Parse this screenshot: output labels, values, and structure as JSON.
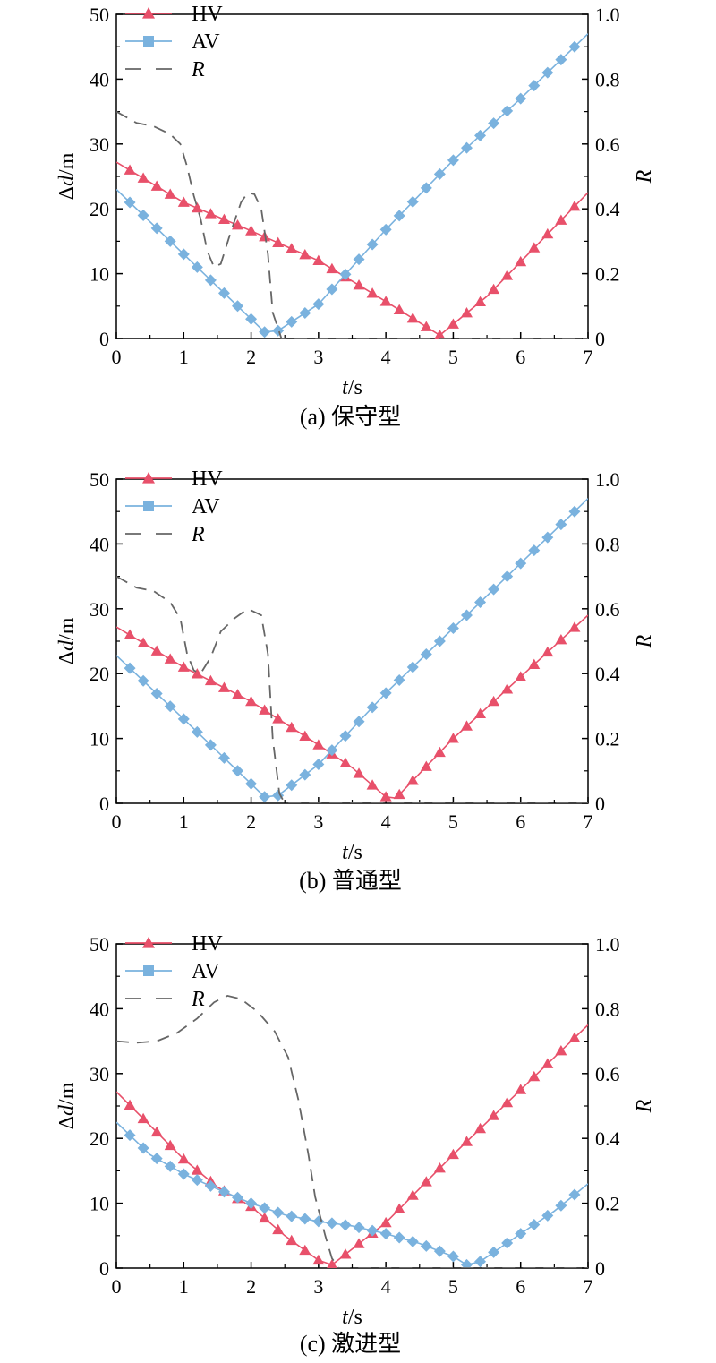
{
  "colors": {
    "hv": "#e8506a",
    "av": "#7ab2de",
    "r": "#666666",
    "axis": "#000000"
  },
  "chart_data": [
    {
      "type": "line",
      "caption": "(a) 保守型",
      "xlabel": {
        "italic": "t",
        "suffix": "/s"
      },
      "ylabel": {
        "prefix": "Δ",
        "italic": "d",
        "suffix": "/m"
      },
      "y2label": "R",
      "xlim": [
        0,
        7
      ],
      "ylim": [
        0,
        50
      ],
      "y2lim": [
        0,
        1.0
      ],
      "xticks": [
        "0",
        "1",
        "2",
        "3",
        "4",
        "5",
        "6",
        "7"
      ],
      "yticks": [
        "0",
        "10",
        "20",
        "30",
        "40",
        "50"
      ],
      "y2ticks": [
        "0",
        "0.2",
        "0.4",
        "0.6",
        "0.8",
        "1.0"
      ],
      "legend": {
        "placement": "top-left",
        "entries": [
          "HV",
          "AV",
          "R"
        ]
      },
      "series": [
        {
          "name": "HV",
          "axis": "left",
          "marker": "triangle",
          "points": [
            [
              0,
              27.2
            ],
            [
              1,
              21
            ],
            [
              2,
              16.6
            ],
            [
              3,
              12
            ],
            [
              4,
              5.7
            ],
            [
              4.8,
              0.5
            ],
            [
              5.5,
              6.5
            ],
            [
              7,
              22.5
            ]
          ]
        },
        {
          "name": "AV",
          "axis": "left",
          "marker": "diamond",
          "points": [
            [
              0,
              23
            ],
            [
              1,
              13
            ],
            [
              2,
              3
            ],
            [
              2.2,
              1
            ],
            [
              2.4,
              1.2
            ],
            [
              3,
              5.3
            ],
            [
              4,
              16.8
            ],
            [
              5,
              27.5
            ],
            [
              6,
              37
            ],
            [
              7,
              47
            ]
          ]
        },
        {
          "name": "R",
          "axis": "right",
          "marker": "none",
          "points": [
            [
              0,
              0.7
            ],
            [
              0.3,
              0.665
            ],
            [
              0.55,
              0.655
            ],
            [
              0.8,
              0.63
            ],
            [
              0.95,
              0.6
            ],
            [
              1.05,
              0.53
            ],
            [
              1.15,
              0.44
            ],
            [
              1.25,
              0.37
            ],
            [
              1.35,
              0.27
            ],
            [
              1.45,
              0.22
            ],
            [
              1.55,
              0.23
            ],
            [
              1.7,
              0.33
            ],
            [
              1.85,
              0.42
            ],
            [
              1.95,
              0.45
            ],
            [
              2.05,
              0.445
            ],
            [
              2.15,
              0.4
            ],
            [
              2.25,
              0.26
            ],
            [
              2.32,
              0.08
            ],
            [
              2.45,
              0.0
            ],
            [
              7,
              0.0
            ]
          ]
        }
      ]
    },
    {
      "type": "line",
      "caption": "(b) 普通型",
      "xlabel": {
        "italic": "t",
        "suffix": "/s"
      },
      "ylabel": {
        "prefix": "Δ",
        "italic": "d",
        "suffix": "/m"
      },
      "y2label": "R",
      "xlim": [
        0,
        7
      ],
      "ylim": [
        0,
        50
      ],
      "y2lim": [
        0,
        1.0
      ],
      "xticks": [
        "0",
        "1",
        "2",
        "3",
        "4",
        "5",
        "6",
        "7"
      ],
      "yticks": [
        "0",
        "10",
        "20",
        "30",
        "40",
        "50"
      ],
      "y2ticks": [
        "0",
        "0.2",
        "0.4",
        "0.6",
        "0.8",
        "1.0"
      ],
      "legend": {
        "placement": "top-left",
        "entries": [
          "HV",
          "AV",
          "R"
        ]
      },
      "series": [
        {
          "name": "HV",
          "axis": "left",
          "marker": "triangle",
          "points": [
            [
              0,
              27.2
            ],
            [
              1,
              21
            ],
            [
              2,
              15.7
            ],
            [
              3,
              9
            ],
            [
              3.5,
              5.5
            ],
            [
              4,
              1
            ],
            [
              4.15,
              0.8
            ],
            [
              5,
              10
            ],
            [
              6,
              19.5
            ],
            [
              7,
              29
            ]
          ]
        },
        {
          "name": "AV",
          "axis": "left",
          "marker": "diamond",
          "points": [
            [
              0,
              22.8
            ],
            [
              1,
              13
            ],
            [
              2,
              3
            ],
            [
              2.2,
              1
            ],
            [
              2.4,
              1.2
            ],
            [
              3,
              6
            ],
            [
              4,
              17
            ],
            [
              5,
              27
            ],
            [
              6,
              37
            ],
            [
              7,
              47
            ]
          ]
        },
        {
          "name": "R",
          "axis": "right",
          "marker": "none",
          "points": [
            [
              0,
              0.7
            ],
            [
              0.3,
              0.665
            ],
            [
              0.55,
              0.655
            ],
            [
              0.8,
              0.62
            ],
            [
              0.95,
              0.57
            ],
            [
              1.05,
              0.46
            ],
            [
              1.15,
              0.41
            ],
            [
              1.25,
              0.4
            ],
            [
              1.4,
              0.45
            ],
            [
              1.55,
              0.53
            ],
            [
              1.75,
              0.57
            ],
            [
              1.95,
              0.6
            ],
            [
              2.15,
              0.58
            ],
            [
              2.25,
              0.46
            ],
            [
              2.32,
              0.2
            ],
            [
              2.42,
              0.03
            ],
            [
              2.5,
              0.0
            ],
            [
              7,
              0.0
            ]
          ]
        }
      ]
    },
    {
      "type": "line",
      "caption": "(c) 激进型",
      "xlabel": {
        "italic": "t",
        "suffix": "/s"
      },
      "ylabel": {
        "prefix": "Δ",
        "italic": "d",
        "suffix": "/m"
      },
      "y2label": "R",
      "xlim": [
        0,
        7
      ],
      "ylim": [
        0,
        50
      ],
      "y2lim": [
        0,
        1.0
      ],
      "xticks": [
        "0",
        "1",
        "2",
        "3",
        "4",
        "5",
        "6",
        "7"
      ],
      "yticks": [
        "0",
        "10",
        "20",
        "30",
        "40",
        "50"
      ],
      "y2ticks": [
        "0",
        "0.2",
        "0.4",
        "0.6",
        "0.8",
        "1.0"
      ],
      "legend": {
        "placement": "top-left",
        "entries": [
          "HV",
          "AV",
          "R"
        ]
      },
      "series": [
        {
          "name": "HV",
          "axis": "left",
          "marker": "triangle",
          "points": [
            [
              0,
              27.2
            ],
            [
              0.5,
              22
            ],
            [
              1,
              16.8
            ],
            [
              1.5,
              12.5
            ],
            [
              2,
              9.5
            ],
            [
              2.5,
              5
            ],
            [
              3,
              1.2
            ],
            [
              3.2,
              0.5
            ],
            [
              4,
              7
            ],
            [
              5,
              17.5
            ],
            [
              6,
              27.5
            ],
            [
              7,
              37.5
            ]
          ]
        },
        {
          "name": "AV",
          "axis": "left",
          "marker": "diamond",
          "points": [
            [
              0,
              22.5
            ],
            [
              0.5,
              17.5
            ],
            [
              1,
              14.5
            ],
            [
              1.5,
              12.2
            ],
            [
              2,
              10
            ],
            [
              2.5,
              8.2
            ],
            [
              3,
              7.2
            ],
            [
              3.5,
              6.5
            ],
            [
              4,
              5.3
            ],
            [
              4.5,
              3.8
            ],
            [
              5,
              1.8
            ],
            [
              5.2,
              0.5
            ],
            [
              5.4,
              1
            ],
            [
              6,
              5.3
            ],
            [
              6.5,
              8.8
            ],
            [
              7,
              13
            ]
          ]
        },
        {
          "name": "R",
          "axis": "right",
          "marker": "none",
          "points": [
            [
              0,
              0.7
            ],
            [
              0.3,
              0.695
            ],
            [
              0.6,
              0.7
            ],
            [
              0.9,
              0.725
            ],
            [
              1.2,
              0.77
            ],
            [
              1.45,
              0.82
            ],
            [
              1.65,
              0.84
            ],
            [
              1.85,
              0.83
            ],
            [
              2.1,
              0.79
            ],
            [
              2.35,
              0.73
            ],
            [
              2.55,
              0.65
            ],
            [
              2.7,
              0.52
            ],
            [
              2.85,
              0.35
            ],
            [
              2.95,
              0.22
            ],
            [
              3.1,
              0.1
            ],
            [
              3.2,
              0.03
            ],
            [
              3.3,
              0.0
            ],
            [
              7,
              0.0
            ]
          ]
        }
      ]
    }
  ]
}
